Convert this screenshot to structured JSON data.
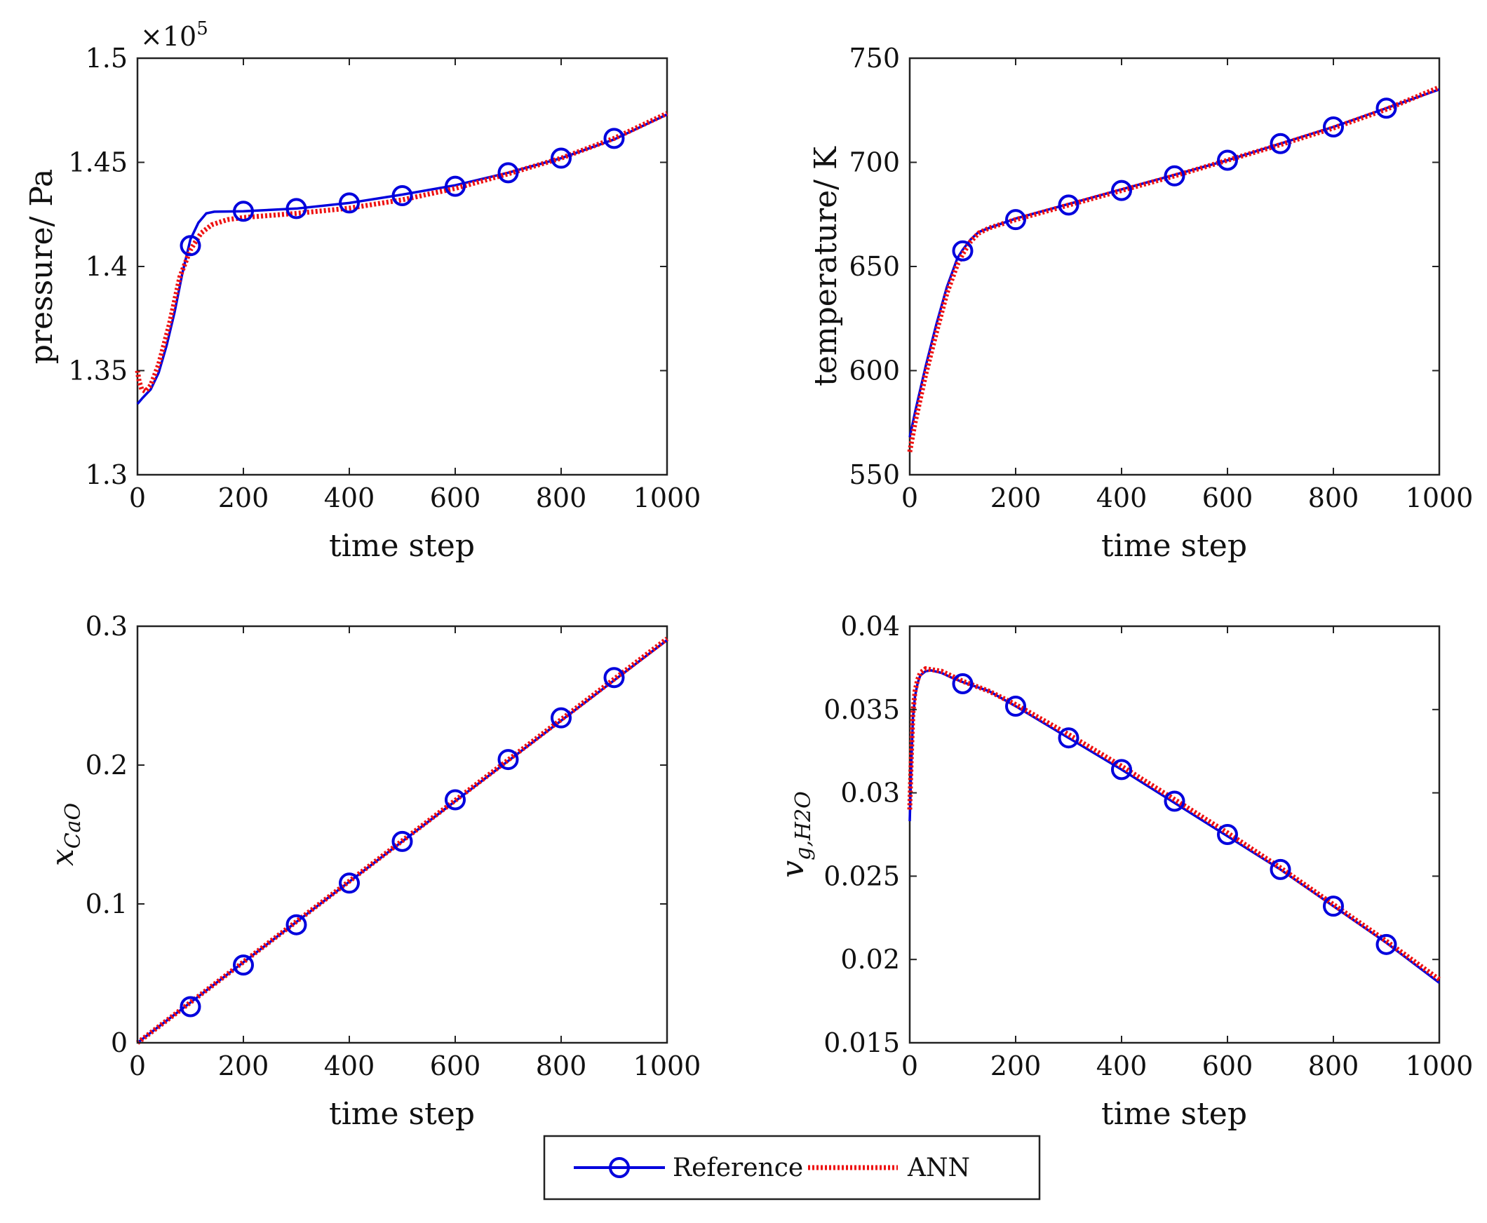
{
  "colors": {
    "reference": "#0000dd",
    "ann": "#ee1111",
    "axis": "#222222",
    "background": "#ffffff"
  },
  "legend": {
    "reference_label": "Reference",
    "ann_label": "ANN"
  },
  "chart_data": [
    {
      "type": "line",
      "id": "pressure",
      "xlabel": "time step",
      "ylabel": "pressure/ Pa",
      "exponent_label": "×10",
      "exponent_power": "5",
      "xlim": [
        0,
        1000
      ],
      "ylim": [
        1.3,
        1.5
      ],
      "xticks": [
        0,
        200,
        400,
        600,
        800,
        1000
      ],
      "xtick_labels": [
        "0",
        "200",
        "400",
        "600",
        "800",
        "1000"
      ],
      "yticks": [
        1.3,
        1.35,
        1.4,
        1.45,
        1.5
      ],
      "ytick_labels": [
        "1.3",
        "1.35",
        "1.4",
        "1.45",
        "1.5"
      ],
      "series": [
        {
          "name": "Reference",
          "style": "solid-circles",
          "x": [
            0,
            10,
            25,
            40,
            55,
            70,
            85,
            100,
            115,
            130,
            145,
            200,
            300,
            400,
            500,
            600,
            700,
            800,
            900,
            1000
          ],
          "y": [
            1.334,
            1.337,
            1.341,
            1.349,
            1.362,
            1.378,
            1.397,
            1.413,
            1.421,
            1.4255,
            1.4263,
            1.4265,
            1.4278,
            1.4305,
            1.4345,
            1.439,
            1.445,
            1.452,
            1.461,
            1.473
          ],
          "markers_x": [
            100,
            200,
            300,
            400,
            500,
            600,
            700,
            800,
            900
          ],
          "markers_y": [
            1.41,
            1.4265,
            1.4278,
            1.4305,
            1.434,
            1.4385,
            1.445,
            1.452,
            1.4615
          ]
        },
        {
          "name": "ANN",
          "style": "dotted",
          "x": [
            0,
            3,
            8,
            15,
            25,
            40,
            60,
            80,
            100,
            120,
            140,
            170,
            200,
            300,
            400,
            500,
            600,
            700,
            800,
            900,
            1000
          ],
          "y": [
            1.35,
            1.345,
            1.341,
            1.34,
            1.343,
            1.353,
            1.372,
            1.395,
            1.408,
            1.416,
            1.42,
            1.4225,
            1.4235,
            1.4255,
            1.428,
            1.432,
            1.4375,
            1.4445,
            1.452,
            1.4615,
            1.4735
          ]
        }
      ]
    },
    {
      "type": "line",
      "id": "temperature",
      "xlabel": "time step",
      "ylabel": "temperature/ K",
      "xlim": [
        0,
        1000
      ],
      "ylim": [
        550,
        750
      ],
      "xticks": [
        0,
        200,
        400,
        600,
        800,
        1000
      ],
      "xtick_labels": [
        "0",
        "200",
        "400",
        "600",
        "800",
        "1000"
      ],
      "yticks": [
        550,
        600,
        650,
        700,
        750
      ],
      "ytick_labels": [
        "550",
        "600",
        "650",
        "700",
        "750"
      ],
      "series": [
        {
          "name": "Reference",
          "style": "solid-circles",
          "x": [
            0,
            10,
            30,
            50,
            70,
            90,
            100,
            115,
            130,
            150,
            200,
            300,
            400,
            500,
            600,
            700,
            800,
            900,
            1000
          ],
          "y": [
            568,
            580,
            602,
            622,
            640,
            654,
            658,
            663,
            666.5,
            668.5,
            673,
            680,
            687,
            694,
            701,
            709,
            717,
            726,
            735
          ],
          "markers_x": [
            100,
            200,
            300,
            400,
            500,
            600,
            700,
            800,
            900
          ],
          "markers_y": [
            657.5,
            672.5,
            679.5,
            686.5,
            693.5,
            701,
            709,
            717,
            726
          ]
        },
        {
          "name": "ANN",
          "style": "dotted",
          "x": [
            0,
            10,
            30,
            50,
            70,
            90,
            100,
            115,
            130,
            150,
            200,
            300,
            400,
            500,
            600,
            700,
            800,
            900,
            1000
          ],
          "y": [
            561,
            575,
            598,
            618,
            637,
            651,
            656,
            662,
            666,
            668.5,
            672.5,
            679.5,
            686.5,
            693.5,
            701,
            708.5,
            716.5,
            725.5,
            736
          ]
        }
      ]
    },
    {
      "type": "line",
      "id": "xcao",
      "xlabel": "time step",
      "ylabel_main": "x",
      "ylabel_sub": "CaO",
      "xlim": [
        0,
        1000
      ],
      "ylim": [
        0,
        0.3
      ],
      "xticks": [
        0,
        200,
        400,
        600,
        800,
        1000
      ],
      "xtick_labels": [
        "0",
        "200",
        "400",
        "600",
        "800",
        "1000"
      ],
      "yticks": [
        0,
        0.1,
        0.2,
        0.3
      ],
      "ytick_labels": [
        "0",
        "0.1",
        "0.2",
        "0.3"
      ],
      "series": [
        {
          "name": "Reference",
          "style": "solid-circles",
          "x": [
            0,
            1000
          ],
          "y": [
            0,
            0.29
          ],
          "markers_x": [
            100,
            200,
            300,
            400,
            500,
            600,
            700,
            800,
            900
          ],
          "markers_y": [
            0.026,
            0.056,
            0.085,
            0.115,
            0.145,
            0.175,
            0.204,
            0.234,
            0.263
          ]
        },
        {
          "name": "ANN",
          "style": "dotted",
          "x": [
            0,
            1000
          ],
          "y": [
            0,
            0.291
          ]
        }
      ]
    },
    {
      "type": "line",
      "id": "vg_h2o",
      "xlabel": "time step",
      "ylabel_main": "v",
      "ylabel_sub": "g,H2O",
      "xlim": [
        0,
        1000
      ],
      "ylim": [
        0.015,
        0.04
      ],
      "xticks": [
        0,
        200,
        400,
        600,
        800,
        1000
      ],
      "xtick_labels": [
        "0",
        "200",
        "400",
        "600",
        "800",
        "1000"
      ],
      "yticks": [
        0.015,
        0.02,
        0.025,
        0.03,
        0.035,
        0.04
      ],
      "ytick_labels": [
        "0.015",
        "0.02",
        "0.025",
        "0.03",
        "0.035",
        "0.04"
      ],
      "series": [
        {
          "name": "Reference",
          "style": "solid-circles",
          "x": [
            0,
            3,
            6,
            10,
            15,
            20,
            30,
            40,
            60,
            80,
            100,
            150,
            200,
            300,
            400,
            500,
            600,
            700,
            800,
            900,
            1000
          ],
          "y": [
            0.0283,
            0.0318,
            0.0345,
            0.0358,
            0.0366,
            0.03705,
            0.0373,
            0.03735,
            0.0372,
            0.0369,
            0.03665,
            0.0361,
            0.0352,
            0.0333,
            0.0314,
            0.0294,
            0.0274,
            0.0254,
            0.0232,
            0.021,
            0.0186
          ],
          "markers_x": [
            100,
            200,
            300,
            400,
            500,
            600,
            700,
            800,
            900
          ],
          "markers_y": [
            0.03655,
            0.0352,
            0.0333,
            0.0314,
            0.0295,
            0.0275,
            0.0254,
            0.0232,
            0.0209
          ]
        },
        {
          "name": "ANN",
          "style": "dotted",
          "x": [
            0,
            3,
            6,
            10,
            15,
            20,
            30,
            40,
            60,
            80,
            100,
            150,
            200,
            300,
            400,
            500,
            600,
            700,
            800,
            900,
            1000
          ],
          "y": [
            0.029,
            0.0322,
            0.0348,
            0.0361,
            0.0368,
            0.0372,
            0.03745,
            0.0374,
            0.0373,
            0.037,
            0.0367,
            0.0361,
            0.0353,
            0.0335,
            0.0316,
            0.0296,
            0.0276,
            0.0255,
            0.0233,
            0.0211,
            0.0188
          ]
        }
      ]
    }
  ]
}
